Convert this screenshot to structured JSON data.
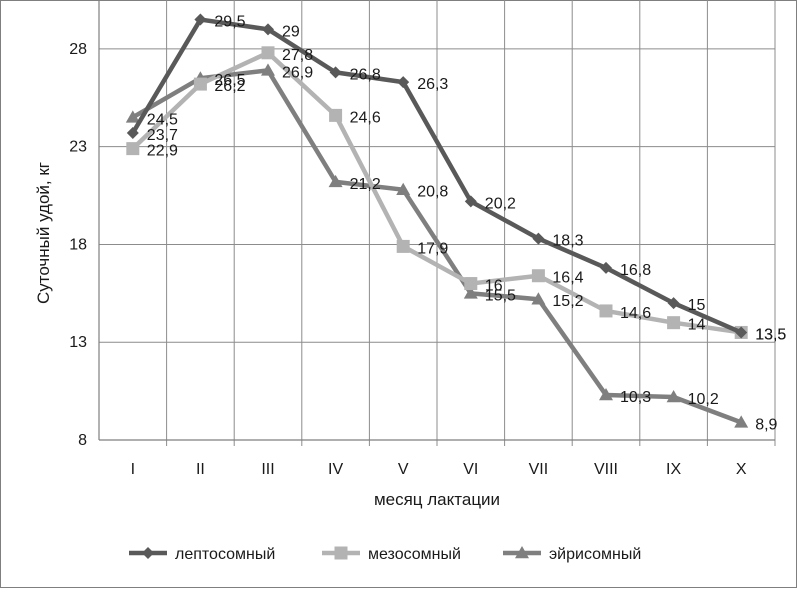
{
  "chart_data": {
    "type": "line",
    "title": "",
    "xlabel": "месяц лактации",
    "ylabel": "Суточный удой, кг",
    "categories": [
      "I",
      "II",
      "III",
      "IV",
      "V",
      "VI",
      "VII",
      "VIII",
      "IX",
      "X"
    ],
    "ylim": [
      8,
      30.5
    ],
    "yticks": [
      8,
      13,
      18,
      23,
      28
    ],
    "grid": true,
    "legend_position": "bottom",
    "series": [
      {
        "name": "лептосомный",
        "marker": "diamond",
        "color": "#595959",
        "values": [
          23.7,
          29.5,
          29,
          26.8,
          26.3,
          20.2,
          18.3,
          16.8,
          15,
          13.5
        ],
        "labels": [
          "23,7",
          "29,5",
          "29",
          "26,8",
          "26,3",
          "20,2",
          "18,3",
          "16,8",
          "15",
          "13,5"
        ]
      },
      {
        "name": "мезосомный",
        "marker": "square",
        "color": "#b3b3b3",
        "values": [
          22.9,
          26.2,
          27.8,
          24.6,
          17.9,
          16,
          16.4,
          14.6,
          14,
          13.5
        ],
        "labels": [
          "22,9",
          "26,2",
          "27,8",
          "24,6",
          "17,9",
          "16",
          "16,4",
          "14,6",
          "14",
          "13,5"
        ]
      },
      {
        "name": "эйрисомный",
        "marker": "triangle",
        "color": "#7f7f7f",
        "values": [
          24.5,
          26.5,
          26.9,
          21.2,
          20.8,
          15.5,
          15.2,
          10.3,
          10.2,
          8.9
        ],
        "labels": [
          "24,5",
          "26,5",
          "26,9",
          "21,2",
          "20,8",
          "15,5",
          "15,2",
          "10,3",
          "10,2",
          "8,9"
        ]
      }
    ]
  }
}
